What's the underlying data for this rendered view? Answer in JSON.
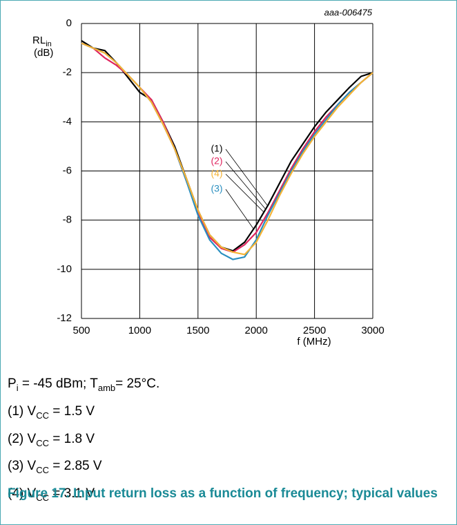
{
  "chart_data": {
    "type": "line",
    "watermark": "aaa-006475",
    "ylabel": {
      "text": "RL",
      "subscript": "in",
      "unit": "(dB)"
    },
    "xlabel": "f (MHz)",
    "x": [
      500,
      600,
      700,
      800,
      900,
      1000,
      1100,
      1200,
      1300,
      1400,
      1500,
      1600,
      1700,
      1800,
      1900,
      2000,
      2100,
      2200,
      2300,
      2400,
      2500,
      2600,
      2700,
      2800,
      2900,
      3000
    ],
    "series": [
      {
        "name": "(1)",
        "color": "#000000",
        "values": [
          -0.7,
          -1.0,
          -1.1,
          -1.6,
          -2.2,
          -2.8,
          -3.1,
          -4.0,
          -5.0,
          -6.3,
          -7.6,
          -8.6,
          -9.1,
          -9.25,
          -8.9,
          -8.2,
          -7.4,
          -6.5,
          -5.6,
          -4.9,
          -4.2,
          -3.6,
          -3.1,
          -2.6,
          -2.15,
          -2.0
        ]
      },
      {
        "name": "(2)",
        "color": "#e0245e",
        "values": [
          -0.8,
          -1.0,
          -1.4,
          -1.7,
          -2.1,
          -2.6,
          -3.1,
          -4.0,
          -5.1,
          -6.4,
          -7.7,
          -8.7,
          -9.15,
          -9.3,
          -9.0,
          -8.5,
          -7.7,
          -6.8,
          -5.9,
          -5.1,
          -4.4,
          -3.8,
          -3.3,
          -2.8,
          -2.4,
          -2.0
        ]
      },
      {
        "name": "(3)",
        "color": "#2a8fc0",
        "values": [
          -0.8,
          -1.0,
          -1.2,
          -1.6,
          -2.1,
          -2.6,
          -3.2,
          -4.1,
          -5.1,
          -6.4,
          -7.8,
          -8.8,
          -9.35,
          -9.6,
          -9.5,
          -8.8,
          -7.8,
          -6.9,
          -6.0,
          -5.2,
          -4.5,
          -3.9,
          -3.3,
          -2.8,
          -2.4,
          -2.0
        ]
      },
      {
        "name": "(4)",
        "color": "#f5b335",
        "values": [
          -0.8,
          -1.0,
          -1.2,
          -1.6,
          -2.1,
          -2.6,
          -3.2,
          -4.1,
          -5.1,
          -6.3,
          -7.6,
          -8.6,
          -9.1,
          -9.3,
          -9.4,
          -8.9,
          -8.0,
          -7.0,
          -6.1,
          -5.3,
          -4.6,
          -4.0,
          -3.4,
          -2.9,
          -2.4,
          -2.0
        ]
      }
    ],
    "xlim": [
      500,
      3000
    ],
    "xticks": [
      500,
      1000,
      1500,
      2000,
      2500,
      3000
    ],
    "ylim": [
      -12,
      0
    ],
    "yticks": [
      0,
      -2,
      -4,
      -6,
      -8,
      -10,
      -12
    ],
    "grid": true
  },
  "notes": [
    [
      "P",
      "i",
      " = -45 dBm; T",
      "amb",
      "= 25°C."
    ],
    [
      "(1) V",
      "CC",
      " = 1.5 V"
    ],
    [
      "(2) V",
      "CC",
      " = 1.8 V"
    ],
    [
      "(3) V",
      "CC",
      " = 2.85 V"
    ],
    [
      "(4) V",
      "CC",
      " = 3.1 V"
    ]
  ],
  "caption": "Figure 17.  Input return loss as a function of frequency; typical values"
}
